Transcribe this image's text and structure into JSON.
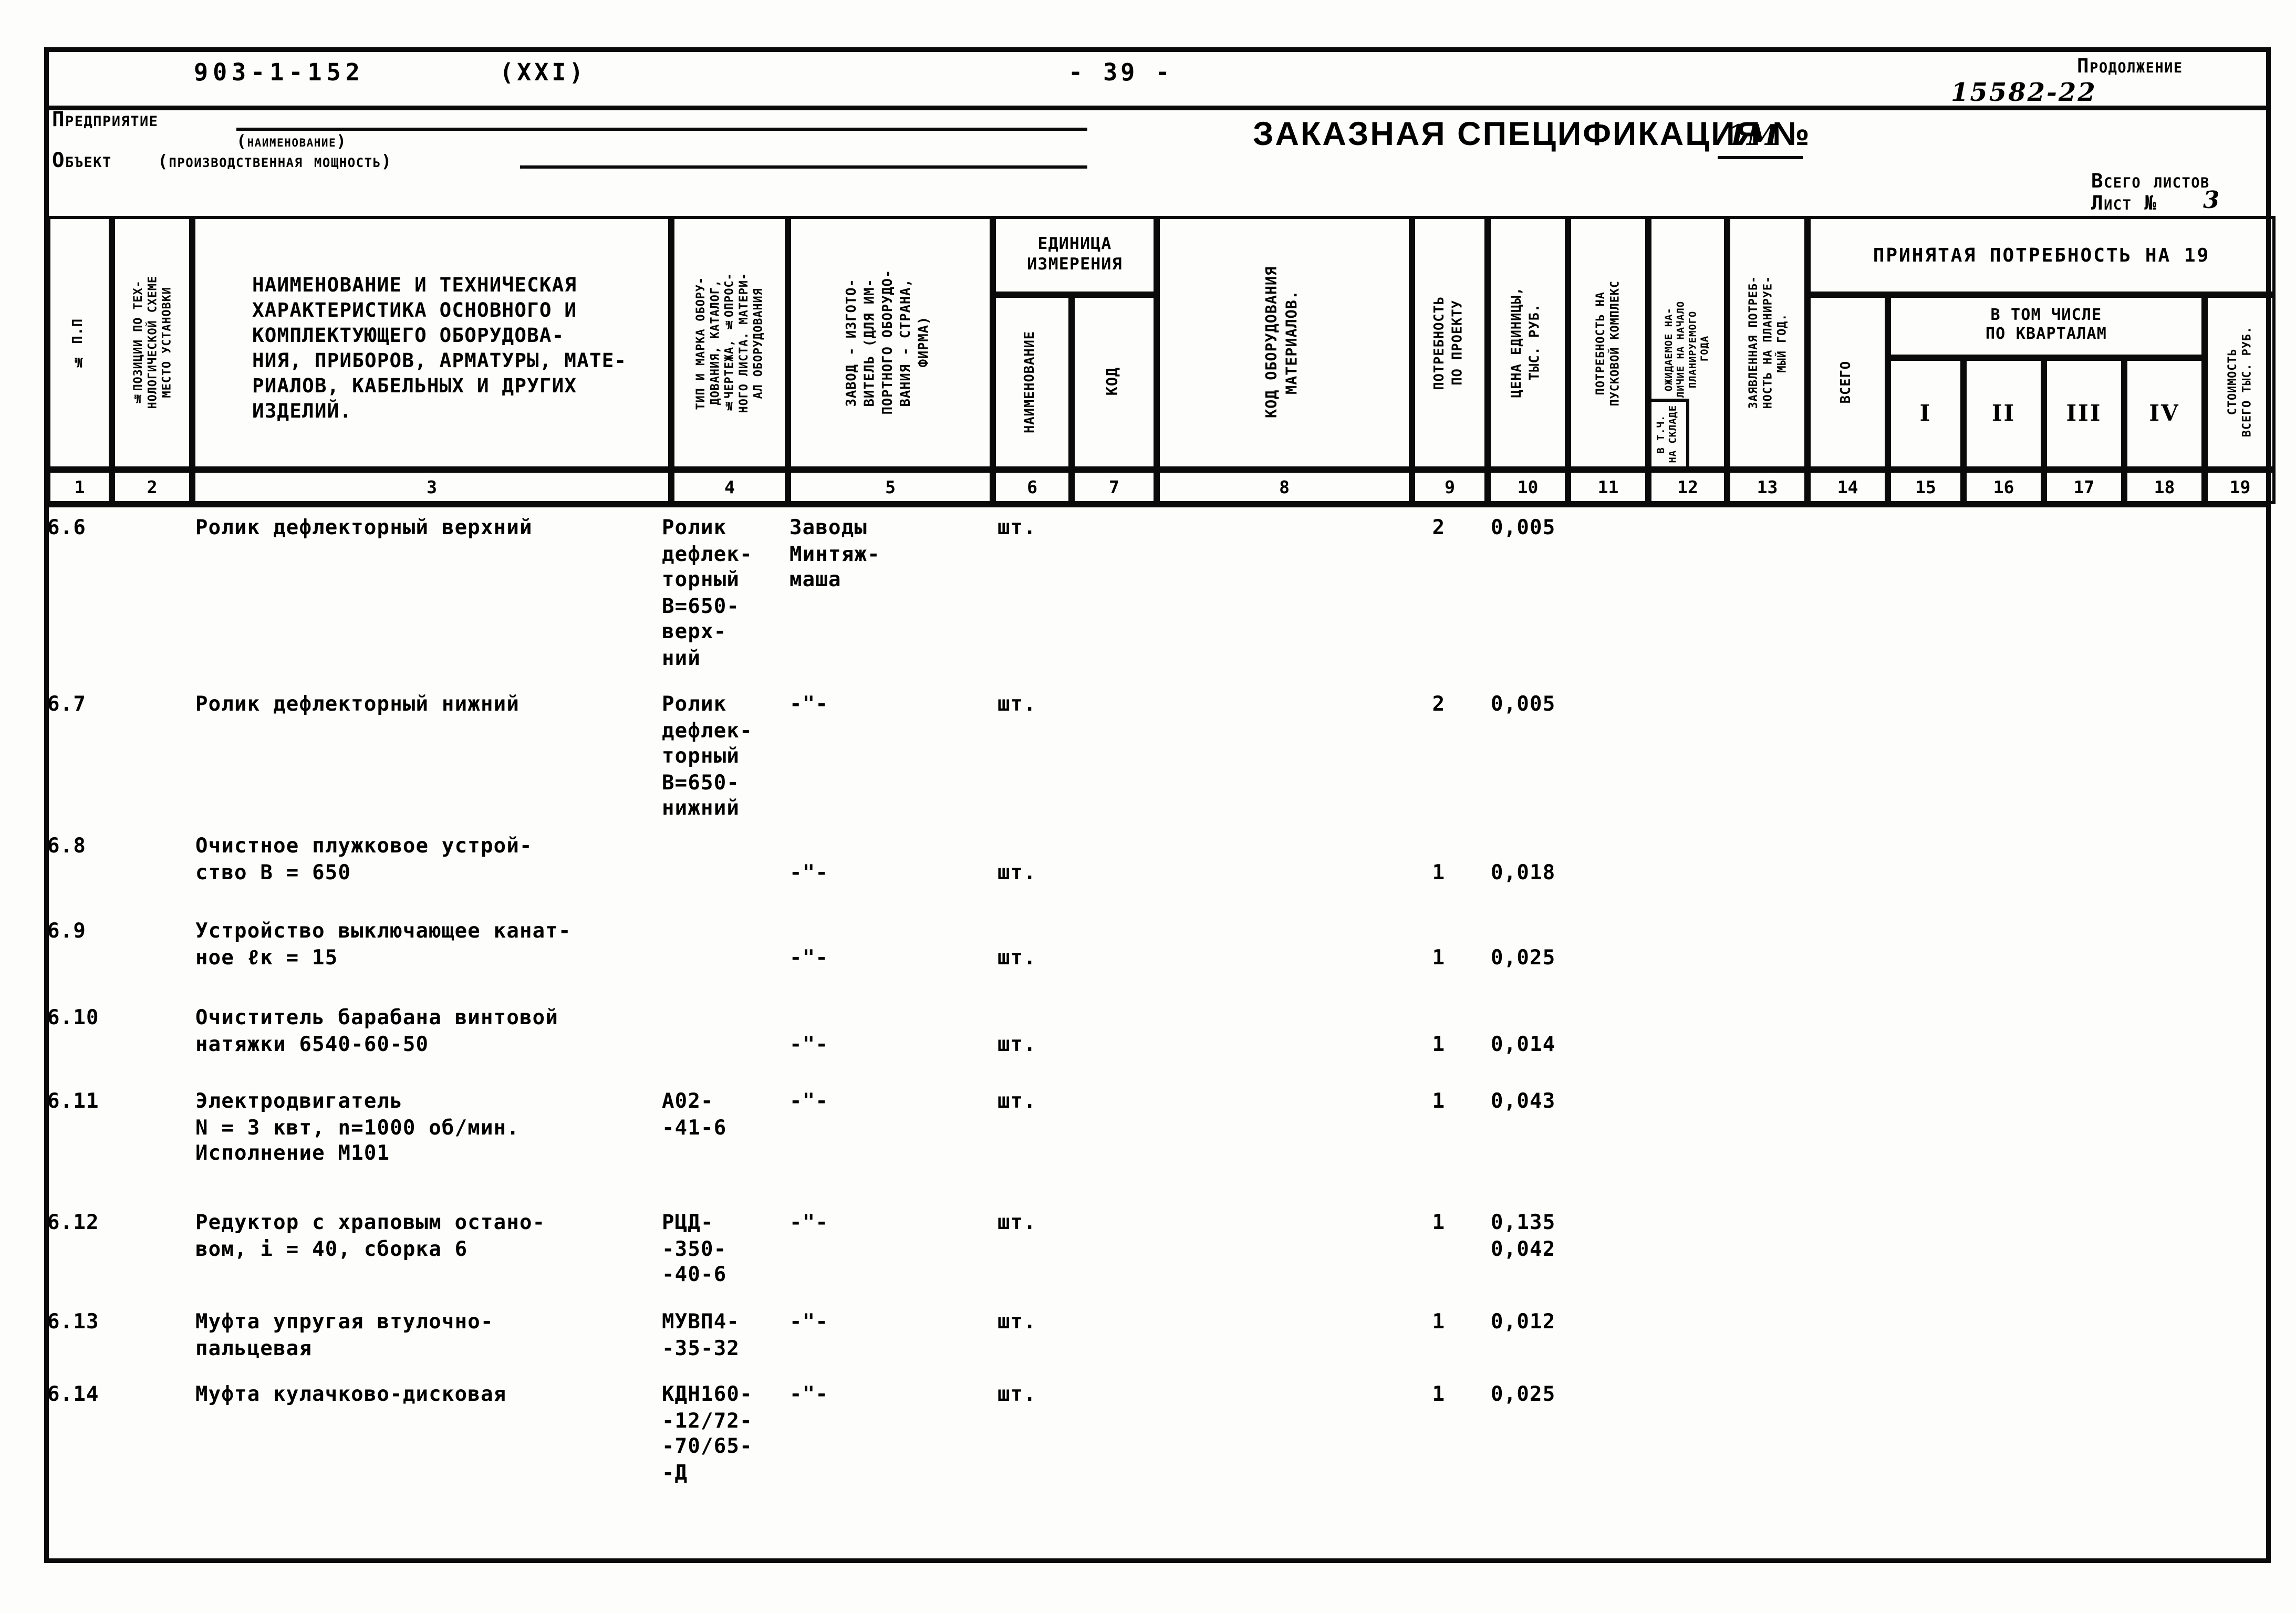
{
  "header": {
    "doc_code": "903-1-152",
    "doc_series": "(XXI)",
    "page_number": "- 39 -",
    "continuation": "Продолжение",
    "continuation_code": "15582-22",
    "enterprise_label": "Предприятие",
    "enterprise_hint": "(наименование)",
    "object_label": "Объект",
    "object_hint": "(производственная мощность)",
    "spec_title": "ЗАКАЗНАЯ СПЕЦИФИКАЦИЯ №",
    "spec_number": "1М",
    "total_sheets_label": "Всего листов",
    "sheet_no_label": "Лист №",
    "sheet_no": "3"
  },
  "table": {
    "groups": {
      "unit": [
        "ЕДИНИЦА",
        "ИЗМЕРЕНИЯ"
      ],
      "accepted": "ПРИНЯТАЯ ПОТРЕБНОСТЬ НА 19",
      "quarters": [
        "В ТОМ ЧИСЛЕ",
        "ПО КВАРТАЛАМ"
      ]
    },
    "columns": {
      "c1": "№ П.П",
      "c2": [
        "№ПОЗИЦИИ ПО ТЕХ-",
        "НОЛОГИЧЕСКОЙ СХЕМЕ",
        "МЕСТО УСТАНОВКИ"
      ],
      "c3": [
        "НАИМЕНОВАНИЕ И ТЕХНИЧЕСКАЯ",
        "ХАРАКТЕРИСТИКА ОСНОВНОГО И",
        "КОМПЛЕКТУЮЩЕГО ОБОРУДОВА-",
        "НИЯ, ПРИБОРОВ, АРМАТУРЫ, МАТЕ-",
        "РИАЛОВ, КАБЕЛЬНЫХ И ДРУГИХ",
        "ИЗДЕЛИЙ."
      ],
      "c4": [
        "ТИП И МАРКА ОБОРУ-",
        "ДОВАНИЯ, КАТАЛОГ,",
        "№ЧЕРТЕЖА, №ОПРОС-",
        "НОГО ЛИСТА. МАТЕРИ-",
        "АЛ ОБОРУДОВАНИЯ"
      ],
      "c5": [
        "ЗАВОД - ИЗГОТО-",
        "ВИТЕЛЬ (ДЛЯ ИМ-",
        "ПОРТНОГО ОБОРУДО-",
        "ВАНИЯ - СТРАНА,",
        "ФИРМА)"
      ],
      "c6": "НАИМЕНОВАНИЕ",
      "c7": "КОД",
      "c8": [
        "КОД ОБОРУДОВАНИЯ",
        "МАТЕРИАЛОВ."
      ],
      "c9": [
        "ПОТРЕБНОСТЬ",
        "ПО ПРОЕКТУ"
      ],
      "c10": [
        "ЦЕНА ЕДИНИЦЫ,",
        "ТЫС. РУБ."
      ],
      "c11": [
        "ПОТРЕБНОСТЬ НА",
        "ПУСКОВОЙ КОМПЛЕКС"
      ],
      "c12": [
        "ОЖИДАЕМОЕ НА-",
        "ЛИЧИЕ НА НАЧАЛО",
        "ПЛАНИРУЕМОГО",
        "ГОДА"
      ],
      "c12_sub": [
        "В Т.Ч.",
        "НА СКЛАДЕ"
      ],
      "c13": [
        "ЗАЯВЛЕННАЯ ПОТРЕБ-",
        "НОСТЬ НА ПЛАНИРУЕ-",
        "МЫЙ ГОД."
      ],
      "c14": "ВСЕГО",
      "c15": "I",
      "c16": "II",
      "c17": "III",
      "c18": "IV",
      "c19": [
        "СТОИМОСТЬ",
        "ВСЕГО ТЫС. РУБ."
      ]
    },
    "column_numbers": [
      "1",
      "2",
      "3",
      "4",
      "5",
      "6",
      "7",
      "8",
      "9",
      "10",
      "11",
      "12",
      "13",
      "14",
      "15",
      "16",
      "17",
      "18",
      "19"
    ],
    "rows": [
      {
        "num": "6.6",
        "name": [
          "Ролик дефлекторный верхний"
        ],
        "type": [
          "Ролик",
          "дефлек-",
          "торный",
          "В=650-",
          "верх-",
          "ний"
        ],
        "manufacturer": [
          "Заводы",
          "Минтяж-",
          "маша"
        ],
        "unit": "шт.",
        "qty": "2",
        "price": [
          "0,005"
        ]
      },
      {
        "num": "6.7",
        "name": [
          "Ролик дефлекторный нижний"
        ],
        "type": [
          "Ролик",
          "дефлек-",
          "торный",
          "В=650-",
          "нижний"
        ],
        "manufacturer": [
          "-\"-"
        ],
        "unit": "шт.",
        "qty": "2",
        "price": [
          "0,005"
        ]
      },
      {
        "num": "6.8",
        "name": [
          "Очистное плужковое устрой-",
          "ство В = 650"
        ],
        "type": [],
        "manufacturer": [
          "-\"-"
        ],
        "unit": "шт.",
        "qty": "1",
        "price": [
          "0,018"
        ]
      },
      {
        "num": "6.9",
        "name": [
          "Устройство выключающее канат-",
          "ное ℓк = 15"
        ],
        "type": [],
        "manufacturer": [
          "-\"-"
        ],
        "unit": "шт.",
        "qty": "1",
        "price": [
          "0,025"
        ]
      },
      {
        "num": "6.10",
        "name": [
          "Очиститель барабана винтовой",
          "натяжки 6540-60-50"
        ],
        "type": [],
        "manufacturer": [
          "-\"-"
        ],
        "unit": "шт.",
        "qty": "1",
        "price": [
          "0,014"
        ]
      },
      {
        "num": "6.11",
        "name": [
          "Электродвигатель",
          "N = 3 квт, n=1000 об/мин.",
          "Исполнение М101"
        ],
        "type": [
          "А02-",
          "-41-6"
        ],
        "manufacturer": [
          "-\"-"
        ],
        "unit": "шт.",
        "qty": "1",
        "price": [
          "0,043"
        ]
      },
      {
        "num": "6.12",
        "name": [
          "Редуктор с храповым остано-",
          "вом, i = 40, сборка 6"
        ],
        "type": [
          "РЦД-",
          "-350-",
          "-40-6"
        ],
        "manufacturer": [
          "-\"-"
        ],
        "unit": "шт.",
        "qty": "1",
        "price": [
          "0,135",
          "0,042"
        ]
      },
      {
        "num": "6.13",
        "name": [
          "Муфта упругая втулочно-",
          "пальцевая"
        ],
        "type": [
          "МУВП4-",
          "-35-32"
        ],
        "manufacturer": [
          "-\"-"
        ],
        "unit": "шт.",
        "qty": "1",
        "price": [
          "0,012"
        ]
      },
      {
        "num": "6.14",
        "name": [
          "Муфта кулачково-дисковая"
        ],
        "type": [
          "КДН160-",
          "-12/72-",
          "-70/65-",
          "-Д"
        ],
        "manufacturer": [
          "-\"-"
        ],
        "unit": "шт.",
        "qty": "1",
        "price": [
          "0,025"
        ]
      }
    ]
  }
}
